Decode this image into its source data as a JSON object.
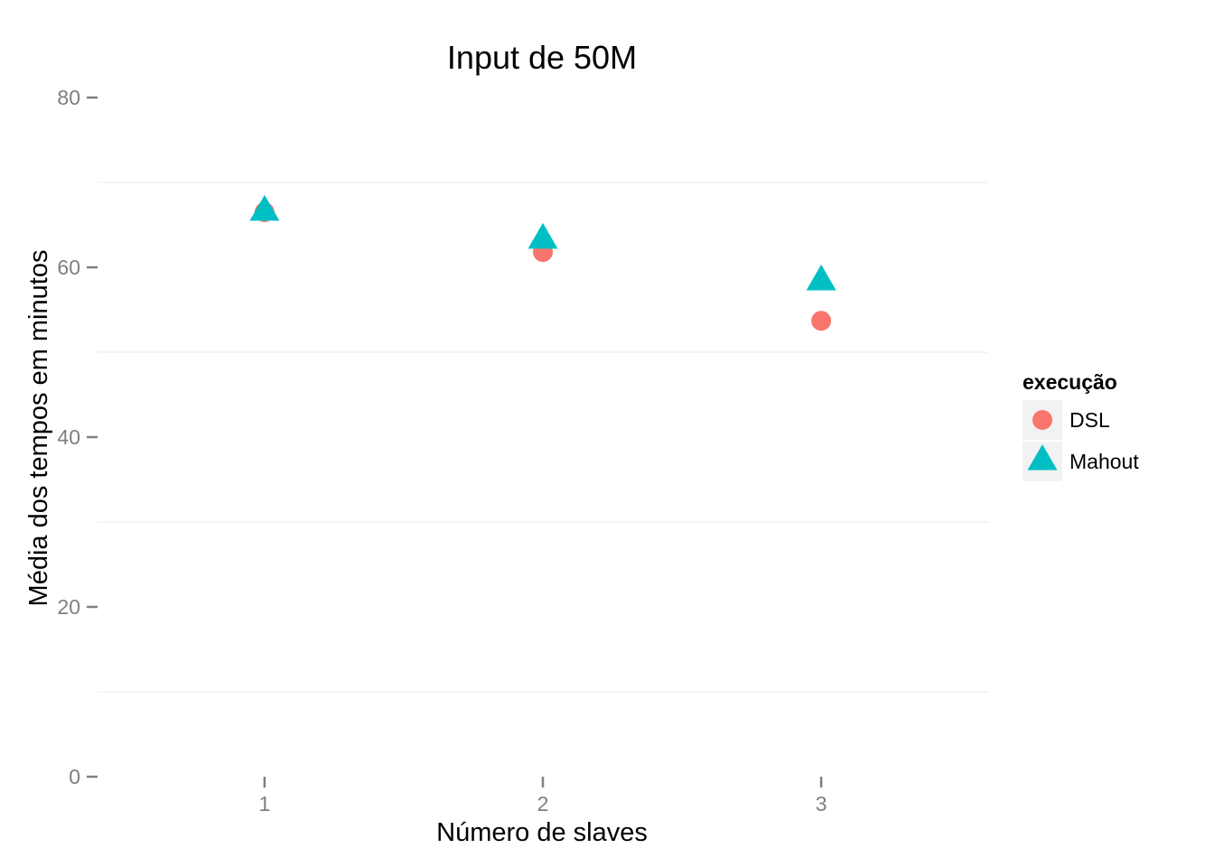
{
  "chart_data": {
    "type": "scatter",
    "title": "Input de 50M",
    "xlabel": "Número de slaves",
    "ylabel": "Média dos tempos em minutos",
    "x_ticks": [
      "1",
      "2",
      "3"
    ],
    "y_ticks": [
      "0",
      "20",
      "40",
      "60",
      "80"
    ],
    "xlim": [
      0.4,
      3.6
    ],
    "ylim": [
      0,
      80
    ],
    "grid": true,
    "legend": {
      "title": "execução",
      "position": "right"
    },
    "series": [
      {
        "name": "DSL",
        "shape": "circle",
        "color": "#F8766D",
        "points": [
          {
            "x": 1,
            "y": 66.5
          },
          {
            "x": 2,
            "y": 61.8
          },
          {
            "x": 3,
            "y": 53.7
          }
        ]
      },
      {
        "name": "Mahout",
        "shape": "triangle",
        "color": "#00BFC4",
        "points": [
          {
            "x": 1,
            "y": 66.5
          },
          {
            "x": 2,
            "y": 63.2
          },
          {
            "x": 3,
            "y": 58.3
          }
        ]
      }
    ]
  }
}
